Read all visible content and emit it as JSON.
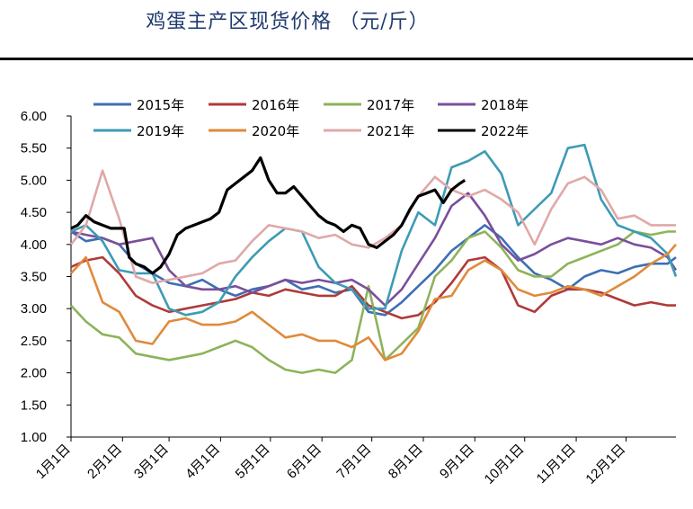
{
  "chart_data": {
    "type": "line",
    "title": "鸡蛋主产区现货价格 （元/斤）",
    "xlabel": "",
    "ylabel": "",
    "ylim": [
      1.0,
      6.0
    ],
    "xlim": [
      1,
      365
    ],
    "y_ticks": [
      "1.00",
      "1.50",
      "2.00",
      "2.50",
      "3.00",
      "3.50",
      "4.00",
      "4.50",
      "5.00",
      "5.50",
      "6.00"
    ],
    "x_ticks": [
      {
        "label": "1月1日",
        "day": 1
      },
      {
        "label": "2月1日",
        "day": 32
      },
      {
        "label": "3月1日",
        "day": 60
      },
      {
        "label": "4月1日",
        "day": 91
      },
      {
        "label": "5月1日",
        "day": 121
      },
      {
        "label": "6月1日",
        "day": 152
      },
      {
        "label": "7月1日",
        "day": 182
      },
      {
        "label": "8月1日",
        "day": 213
      },
      {
        "label": "9月1日",
        "day": 244
      },
      {
        "label": "10月1日",
        "day": 274
      },
      {
        "label": "11月1日",
        "day": 305
      },
      {
        "label": "12月1日",
        "day": 335
      }
    ],
    "series": [
      {
        "name": "2015年",
        "color": "#3d6fb4",
        "x": [
          1,
          10,
          20,
          30,
          40,
          50,
          60,
          70,
          80,
          90,
          100,
          110,
          120,
          130,
          140,
          150,
          160,
          170,
          180,
          190,
          200,
          210,
          220,
          230,
          240,
          250,
          260,
          270,
          280,
          290,
          300,
          310,
          320,
          330,
          340,
          350,
          360,
          365
        ],
        "y": [
          4.2,
          4.05,
          4.1,
          4.0,
          3.7,
          3.55,
          3.4,
          3.35,
          3.45,
          3.3,
          3.2,
          3.3,
          3.35,
          3.45,
          3.3,
          3.35,
          3.25,
          3.3,
          2.95,
          2.9,
          3.1,
          3.35,
          3.6,
          3.9,
          4.1,
          4.3,
          4.1,
          3.8,
          3.55,
          3.45,
          3.3,
          3.5,
          3.6,
          3.55,
          3.65,
          3.7,
          3.7,
          3.8
        ]
      },
      {
        "name": "2016年",
        "color": "#b03a3a",
        "x": [
          1,
          10,
          20,
          30,
          40,
          50,
          60,
          70,
          80,
          90,
          100,
          110,
          120,
          130,
          140,
          150,
          160,
          170,
          180,
          190,
          200,
          210,
          220,
          230,
          240,
          250,
          260,
          270,
          280,
          290,
          300,
          310,
          320,
          330,
          340,
          350,
          360,
          365
        ],
        "y": [
          3.65,
          3.75,
          3.8,
          3.55,
          3.2,
          3.05,
          2.95,
          3.0,
          3.05,
          3.1,
          3.15,
          3.25,
          3.2,
          3.3,
          3.25,
          3.2,
          3.2,
          3.35,
          3.05,
          2.95,
          2.85,
          2.9,
          3.1,
          3.4,
          3.75,
          3.8,
          3.6,
          3.05,
          2.95,
          3.2,
          3.3,
          3.3,
          3.25,
          3.15,
          3.05,
          3.1,
          3.05,
          3.05
        ]
      },
      {
        "name": "2017年",
        "color": "#8db35a",
        "x": [
          1,
          10,
          20,
          30,
          40,
          50,
          60,
          70,
          80,
          90,
          100,
          110,
          120,
          130,
          140,
          150,
          160,
          170,
          180,
          190,
          200,
          210,
          220,
          230,
          240,
          250,
          260,
          270,
          280,
          290,
          300,
          310,
          320,
          330,
          340,
          350,
          360,
          365
        ],
        "y": [
          3.05,
          2.8,
          2.6,
          2.55,
          2.3,
          2.25,
          2.2,
          2.25,
          2.3,
          2.4,
          2.5,
          2.4,
          2.2,
          2.05,
          2.0,
          2.05,
          2.0,
          2.2,
          3.35,
          2.2,
          2.45,
          2.7,
          3.5,
          3.75,
          4.1,
          4.2,
          3.95,
          3.6,
          3.5,
          3.5,
          3.7,
          3.8,
          3.9,
          4.0,
          4.2,
          4.15,
          4.2,
          4.2
        ]
      },
      {
        "name": "2018年",
        "color": "#7a4f9a",
        "x": [
          1,
          10,
          20,
          30,
          40,
          50,
          60,
          70,
          80,
          90,
          100,
          110,
          120,
          130,
          140,
          150,
          160,
          170,
          180,
          190,
          200,
          210,
          220,
          230,
          240,
          250,
          260,
          270,
          280,
          290,
          300,
          310,
          320,
          330,
          340,
          350,
          360,
          365
        ],
        "y": [
          4.2,
          4.15,
          4.1,
          4.0,
          4.05,
          4.1,
          3.6,
          3.35,
          3.3,
          3.3,
          3.35,
          3.25,
          3.35,
          3.45,
          3.4,
          3.45,
          3.4,
          3.45,
          3.3,
          3.05,
          3.3,
          3.7,
          4.1,
          4.6,
          4.8,
          4.45,
          4.0,
          3.75,
          3.85,
          4.0,
          4.1,
          4.05,
          4.0,
          4.1,
          4.0,
          3.95,
          3.8,
          3.6
        ]
      },
      {
        "name": "2019年",
        "color": "#3d9bb5",
        "x": [
          1,
          10,
          20,
          30,
          40,
          50,
          60,
          70,
          80,
          90,
          100,
          110,
          120,
          130,
          140,
          150,
          160,
          170,
          180,
          190,
          200,
          210,
          220,
          230,
          240,
          250,
          260,
          270,
          280,
          290,
          300,
          310,
          320,
          330,
          340,
          350,
          360,
          365
        ],
        "y": [
          4.2,
          4.3,
          4.05,
          3.6,
          3.55,
          3.55,
          3.0,
          2.9,
          2.95,
          3.1,
          3.5,
          3.8,
          4.05,
          4.25,
          4.2,
          3.65,
          3.4,
          3.3,
          3.0,
          3.0,
          3.9,
          4.5,
          4.3,
          5.2,
          5.3,
          5.45,
          5.1,
          4.3,
          4.55,
          4.8,
          5.5,
          5.55,
          4.7,
          4.3,
          4.2,
          4.1,
          3.85,
          3.5
        ]
      },
      {
        "name": "2020年",
        "color": "#e08a3a",
        "x": [
          1,
          10,
          20,
          30,
          40,
          50,
          60,
          70,
          80,
          90,
          100,
          110,
          120,
          130,
          140,
          150,
          160,
          170,
          180,
          190,
          200,
          210,
          220,
          230,
          240,
          250,
          260,
          270,
          280,
          290,
          300,
          310,
          320,
          330,
          340,
          350,
          360,
          365
        ],
        "y": [
          3.55,
          3.8,
          3.1,
          2.95,
          2.5,
          2.45,
          2.8,
          2.85,
          2.75,
          2.75,
          2.8,
          2.95,
          2.75,
          2.55,
          2.6,
          2.5,
          2.5,
          2.4,
          2.55,
          2.2,
          2.3,
          2.65,
          3.15,
          3.2,
          3.6,
          3.75,
          3.6,
          3.3,
          3.2,
          3.25,
          3.35,
          3.3,
          3.2,
          3.35,
          3.5,
          3.7,
          3.85,
          4.0
        ]
      },
      {
        "name": "2021年",
        "color": "#e0a8a8",
        "x": [
          1,
          10,
          20,
          30,
          40,
          50,
          60,
          70,
          80,
          90,
          100,
          110,
          120,
          130,
          140,
          150,
          160,
          170,
          180,
          190,
          200,
          210,
          220,
          230,
          240,
          250,
          260,
          270,
          280,
          290,
          300,
          310,
          320,
          330,
          340,
          350,
          360,
          365
        ],
        "y": [
          4.0,
          4.3,
          5.15,
          4.4,
          3.5,
          3.4,
          3.45,
          3.5,
          3.55,
          3.7,
          3.75,
          4.05,
          4.3,
          4.25,
          4.2,
          4.1,
          4.15,
          4.0,
          3.95,
          4.1,
          4.3,
          4.75,
          5.05,
          4.85,
          4.75,
          4.85,
          4.7,
          4.5,
          4.0,
          4.55,
          4.95,
          5.05,
          4.85,
          4.4,
          4.45,
          4.3,
          4.3,
          4.3
        ]
      },
      {
        "name": "2022年",
        "color": "#000000",
        "x": [
          1,
          5,
          10,
          15,
          20,
          25,
          30,
          33,
          36,
          40,
          45,
          50,
          55,
          60,
          65,
          70,
          75,
          80,
          85,
          90,
          95,
          100,
          105,
          110,
          115,
          120,
          125,
          130,
          135,
          140,
          145,
          150,
          155,
          160,
          165,
          170,
          175,
          180,
          185,
          190,
          195,
          200,
          205,
          210,
          215,
          220,
          225,
          230,
          235,
          238
        ],
        "y": [
          4.25,
          4.3,
          4.45,
          4.35,
          4.3,
          4.25,
          4.25,
          4.25,
          3.8,
          3.7,
          3.65,
          3.55,
          3.65,
          3.85,
          4.15,
          4.25,
          4.3,
          4.35,
          4.4,
          4.5,
          4.85,
          4.95,
          5.05,
          5.15,
          5.35,
          5.0,
          4.8,
          4.8,
          4.9,
          4.75,
          4.6,
          4.45,
          4.35,
          4.3,
          4.2,
          4.3,
          4.25,
          4.0,
          3.95,
          4.05,
          4.15,
          4.3,
          4.55,
          4.75,
          4.8,
          4.85,
          4.65,
          4.85,
          4.95,
          5.0
        ]
      }
    ]
  }
}
